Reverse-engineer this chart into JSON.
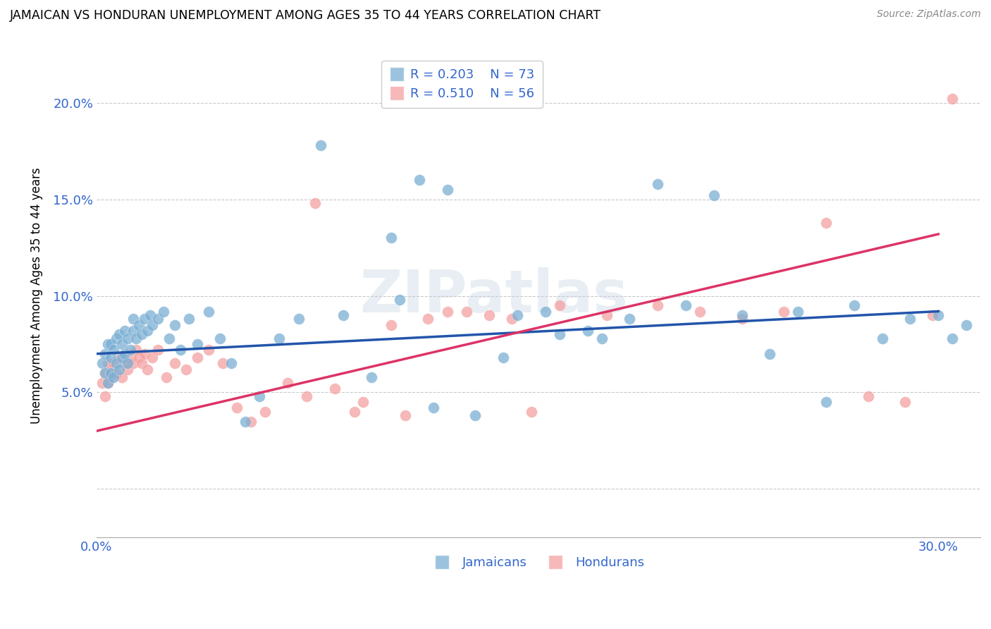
{
  "title": "JAMAICAN VS HONDURAN UNEMPLOYMENT AMONG AGES 35 TO 44 YEARS CORRELATION CHART",
  "source": "Source: ZipAtlas.com",
  "ylabel": "Unemployment Among Ages 35 to 44 years",
  "xlim": [
    0.0,
    0.315
  ],
  "ylim": [
    -0.025,
    0.225
  ],
  "legend_R_blue": "R = 0.203",
  "legend_N_blue": "N = 73",
  "legend_R_pink": "R = 0.510",
  "legend_N_pink": "N = 56",
  "label_jamaicans": "Jamaicans",
  "label_hondurans": "Hondurans",
  "blue_color": "#7BAFD4",
  "pink_color": "#F4A0A0",
  "blue_line_color": "#2255AA",
  "pink_line_color": "#DD3366",
  "axis_label_color": "#3366CC",
  "watermark": "ZIPatlas",
  "blue_line_x0": 0.0,
  "blue_line_y0": 0.07,
  "blue_line_x1": 0.3,
  "blue_line_y1": 0.092,
  "pink_line_x0": 0.0,
  "pink_line_y0": 0.03,
  "pink_line_x1": 0.3,
  "pink_line_y1": 0.132,
  "jamaican_x": [
    0.002,
    0.003,
    0.003,
    0.004,
    0.004,
    0.005,
    0.005,
    0.005,
    0.006,
    0.006,
    0.007,
    0.007,
    0.008,
    0.008,
    0.009,
    0.009,
    0.01,
    0.01,
    0.011,
    0.011,
    0.012,
    0.013,
    0.013,
    0.014,
    0.015,
    0.016,
    0.017,
    0.018,
    0.019,
    0.02,
    0.022,
    0.024,
    0.026,
    0.028,
    0.03,
    0.033,
    0.036,
    0.04,
    0.044,
    0.048,
    0.053,
    0.058,
    0.065,
    0.072,
    0.08,
    0.088,
    0.098,
    0.108,
    0.12,
    0.135,
    0.15,
    0.165,
    0.18,
    0.2,
    0.22,
    0.24,
    0.26,
    0.27,
    0.28,
    0.29,
    0.3,
    0.305,
    0.31,
    0.105,
    0.115,
    0.125,
    0.145,
    0.16,
    0.175,
    0.19,
    0.21,
    0.23,
    0.25
  ],
  "jamaican_y": [
    0.065,
    0.06,
    0.07,
    0.055,
    0.075,
    0.06,
    0.068,
    0.075,
    0.058,
    0.072,
    0.065,
    0.078,
    0.062,
    0.08,
    0.068,
    0.075,
    0.07,
    0.082,
    0.065,
    0.078,
    0.072,
    0.082,
    0.088,
    0.078,
    0.085,
    0.08,
    0.088,
    0.082,
    0.09,
    0.085,
    0.088,
    0.092,
    0.078,
    0.085,
    0.072,
    0.088,
    0.075,
    0.092,
    0.078,
    0.065,
    0.035,
    0.048,
    0.078,
    0.088,
    0.178,
    0.09,
    0.058,
    0.098,
    0.042,
    0.038,
    0.09,
    0.08,
    0.078,
    0.158,
    0.152,
    0.07,
    0.045,
    0.095,
    0.078,
    0.088,
    0.09,
    0.078,
    0.085,
    0.13,
    0.16,
    0.155,
    0.068,
    0.092,
    0.082,
    0.088,
    0.095,
    0.09,
    0.092
  ],
  "honduran_x": [
    0.002,
    0.003,
    0.003,
    0.004,
    0.004,
    0.005,
    0.005,
    0.006,
    0.007,
    0.008,
    0.009,
    0.01,
    0.011,
    0.012,
    0.013,
    0.014,
    0.015,
    0.016,
    0.017,
    0.018,
    0.02,
    0.022,
    0.025,
    0.028,
    0.032,
    0.036,
    0.04,
    0.045,
    0.05,
    0.055,
    0.06,
    0.068,
    0.075,
    0.085,
    0.095,
    0.105,
    0.118,
    0.132,
    0.148,
    0.165,
    0.182,
    0.2,
    0.215,
    0.23,
    0.245,
    0.26,
    0.275,
    0.288,
    0.298,
    0.305,
    0.078,
    0.092,
    0.11,
    0.125,
    0.14,
    0.155
  ],
  "honduran_y": [
    0.055,
    0.06,
    0.048,
    0.065,
    0.055,
    0.062,
    0.058,
    0.065,
    0.06,
    0.068,
    0.058,
    0.065,
    0.062,
    0.068,
    0.065,
    0.072,
    0.068,
    0.065,
    0.07,
    0.062,
    0.068,
    0.072,
    0.058,
    0.065,
    0.062,
    0.068,
    0.072,
    0.065,
    0.042,
    0.035,
    0.04,
    0.055,
    0.048,
    0.052,
    0.045,
    0.085,
    0.088,
    0.092,
    0.088,
    0.095,
    0.09,
    0.095,
    0.092,
    0.088,
    0.092,
    0.138,
    0.048,
    0.045,
    0.09,
    0.202,
    0.148,
    0.04,
    0.038,
    0.092,
    0.09,
    0.04
  ]
}
